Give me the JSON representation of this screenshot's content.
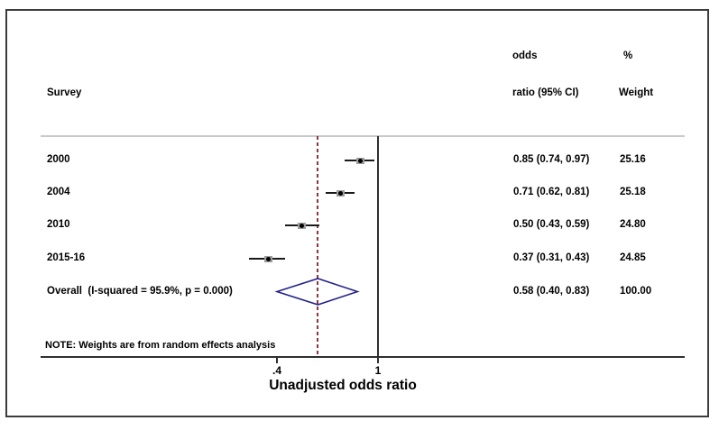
{
  "figure": {
    "survey_header": "Survey",
    "or_header_top": "odds",
    "or_header_bottom": "ratio (95% CI)",
    "weight_header_top": "%",
    "weight_header_bottom": "Weight"
  },
  "chart_data": {
    "type": "scatter",
    "variant": "forest-plot",
    "title": "",
    "xlabel": "Unadjusted odds ratio",
    "x_scale": "log",
    "x_ticks": [
      {
        "value": 0.4,
        "label": ".4"
      },
      {
        "value": 1,
        "label": "1"
      }
    ],
    "null_line_x": 1,
    "pooled_effect_line_x": 0.58,
    "studies": [
      {
        "label": "2000",
        "or": 0.85,
        "ci_low": 0.74,
        "ci_high": 0.97,
        "weight": 25.16,
        "or_ci_text": "0.85 (0.74, 0.97)",
        "weight_text": "25.16"
      },
      {
        "label": "2004",
        "or": 0.71,
        "ci_low": 0.62,
        "ci_high": 0.81,
        "weight": 25.18,
        "or_ci_text": "0.71 (0.62, 0.81)",
        "weight_text": "25.18"
      },
      {
        "label": "2010",
        "or": 0.5,
        "ci_low": 0.43,
        "ci_high": 0.59,
        "weight": 24.8,
        "or_ci_text": "0.50 (0.43, 0.59)",
        "weight_text": "24.80"
      },
      {
        "label": "2015-16",
        "or": 0.37,
        "ci_low": 0.31,
        "ci_high": 0.43,
        "weight": 24.85,
        "or_ci_text": "0.37 (0.31, 0.43)",
        "weight_text": "24.85"
      }
    ],
    "overall": {
      "label": "Overall  (I-squared = 95.9%, p = 0.000)",
      "or": 0.58,
      "ci_low": 0.4,
      "ci_high": 0.83,
      "weight": 100.0,
      "or_ci_text": "0.58 (0.40, 0.83)",
      "weight_text": "100.00"
    },
    "note": "NOTE: Weights are from random effects analysis",
    "legend": null,
    "grid": false,
    "colors": {
      "diamond_stroke": "#22228c",
      "pooled_line": "#90353b",
      "ci_line": "#1a1a1a",
      "weight_box": "#9c9c9c",
      "marker_dot": "#000000",
      "axis_line": "#2f2f2f",
      "separator_line": "#c9c9c9"
    }
  }
}
